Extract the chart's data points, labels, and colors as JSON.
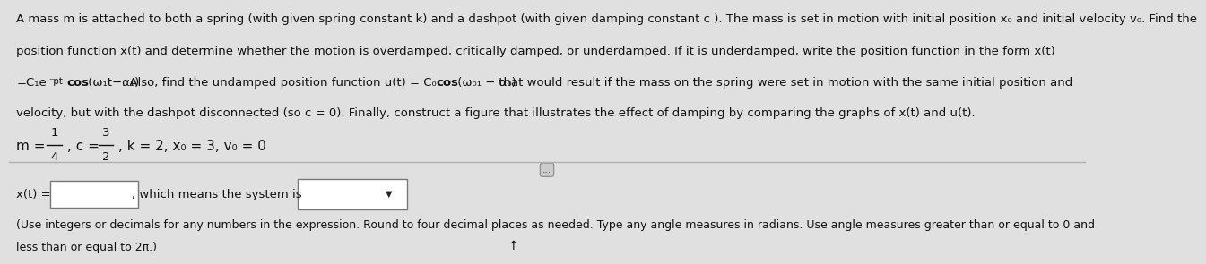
{
  "bg_color": "#e0e0e0",
  "top_section_bg": "#f2f2f2",
  "bottom_section_bg": "#d8d8d8",
  "line1": "A mass m is attached to both a spring (with given spring constant k) and a dashpot (with given damping constant c ). The mass is set in motion with initial position x₀ and initial velocity v₀. Find the",
  "line2": "position function x(t) and determine whether the motion is overdamped, critically damped, or underdamped. If it is underdamped, write the position function in the form x(t)",
  "line4": "velocity, but with the dashpot disconnected (so c = 0). Finally, construct a figure that illustrates the effect of damping by comparing the graphs of x(t) and u(t).",
  "bottom_line3": "(Use integers or decimals for any numbers in the expression. Round to four decimal places as needed. Type any angle measures in radians. Use angle measures greater than or equal to 0 and",
  "bottom_line4": "less than or equal to 2π.)",
  "font_size_body": 9.5,
  "font_size_params": 11.0,
  "font_size_bottom": 9.5,
  "text_color": "#111111"
}
